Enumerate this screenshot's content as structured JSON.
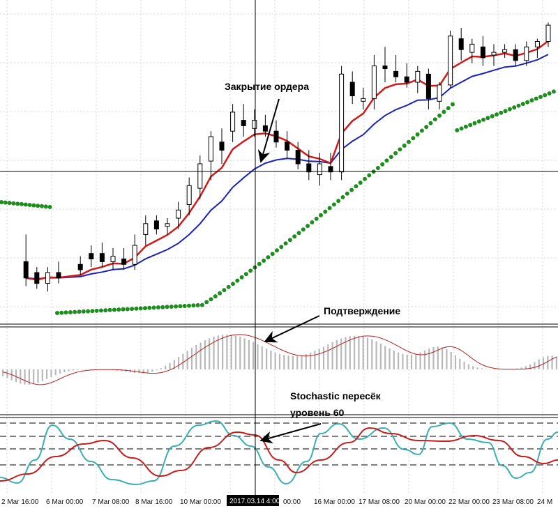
{
  "chart_data": [
    {
      "type": "candlestick",
      "panel": "price",
      "series": [
        {
          "name": "",
          "kind": "ema_fast",
          "color": "#d11a1a"
        },
        {
          "name": "",
          "kind": "ema_slow",
          "color": "#1a22b8"
        },
        {
          "name": "",
          "kind": "parabolic_sar",
          "color": "#1e8c1e"
        }
      ],
      "ohlc": [
        [
          2,
          0.14,
          0.24,
          0.05,
          0.08
        ],
        [
          3,
          0.1,
          0.12,
          0.04,
          0.06
        ],
        [
          4,
          0.06,
          0.12,
          0.03,
          0.1
        ],
        [
          5,
          0.1,
          0.14,
          0.06,
          0.08
        ],
        [
          7,
          0.13,
          0.16,
          0.09,
          0.11
        ],
        [
          8,
          0.17,
          0.2,
          0.12,
          0.15
        ],
        [
          9,
          0.17,
          0.21,
          0.12,
          0.14
        ],
        [
          10,
          0.14,
          0.19,
          0.11,
          0.16
        ],
        [
          11,
          0.15,
          0.19,
          0.11,
          0.13
        ],
        [
          12,
          0.13,
          0.24,
          0.11,
          0.2
        ],
        [
          13,
          0.24,
          0.31,
          0.2,
          0.28
        ],
        [
          14,
          0.29,
          0.31,
          0.24,
          0.26
        ],
        [
          15,
          0.27,
          0.3,
          0.24,
          0.28
        ],
        [
          16,
          0.3,
          0.36,
          0.26,
          0.33
        ],
        [
          17,
          0.35,
          0.45,
          0.31,
          0.42
        ],
        [
          18,
          0.41,
          0.53,
          0.37,
          0.5
        ],
        [
          19,
          0.51,
          0.62,
          0.44,
          0.6
        ],
        [
          20,
          0.58,
          0.63,
          0.5,
          0.55
        ],
        [
          21,
          0.62,
          0.72,
          0.58,
          0.69
        ],
        [
          22,
          0.66,
          0.72,
          0.6,
          0.64
        ],
        [
          23,
          0.63,
          0.7,
          0.6,
          0.66
        ],
        [
          24,
          0.64,
          0.68,
          0.6,
          0.62
        ],
        [
          25,
          0.62,
          0.66,
          0.56,
          0.58
        ],
        [
          26,
          0.58,
          0.62,
          0.52,
          0.55
        ],
        [
          27,
          0.55,
          0.58,
          0.48,
          0.5
        ],
        [
          28,
          0.5,
          0.55,
          0.44,
          0.47
        ],
        [
          29,
          0.46,
          0.54,
          0.42,
          0.5
        ],
        [
          30,
          0.49,
          0.54,
          0.44,
          0.47
        ],
        [
          31,
          0.47,
          0.86,
          0.44,
          0.83
        ],
        [
          32,
          0.8,
          0.84,
          0.72,
          0.75
        ],
        [
          33,
          0.73,
          0.78,
          0.7,
          0.74
        ],
        [
          34,
          0.74,
          0.9,
          0.7,
          0.86
        ],
        [
          35,
          0.86,
          0.93,
          0.8,
          0.85
        ],
        [
          36,
          0.84,
          0.9,
          0.8,
          0.82
        ],
        [
          37,
          0.82,
          0.87,
          0.78,
          0.8
        ],
        [
          38,
          0.8,
          0.86,
          0.76,
          0.84
        ],
        [
          39,
          0.83,
          0.85,
          0.7,
          0.74
        ],
        [
          40,
          0.73,
          0.8,
          0.7,
          0.79
        ],
        [
          41,
          0.79,
          0.99,
          0.78,
          0.97
        ],
        [
          42,
          0.96,
          1.0,
          0.88,
          0.92
        ],
        [
          43,
          0.91,
          0.96,
          0.87,
          0.94
        ],
        [
          44,
          0.93,
          0.97,
          0.86,
          0.89
        ],
        [
          45,
          0.9,
          0.94,
          0.86,
          0.91
        ],
        [
          46,
          0.91,
          0.94,
          0.89,
          0.92
        ],
        [
          47,
          0.92,
          0.94,
          0.86,
          0.88
        ],
        [
          48,
          0.88,
          0.95,
          0.86,
          0.93
        ],
        [
          49,
          0.93,
          0.96,
          0.89,
          0.95
        ],
        [
          50,
          0.95,
          1.02,
          0.93,
          1.01
        ]
      ]
    },
    {
      "type": "histogram",
      "panel": "macd",
      "series": [
        {
          "name": "",
          "kind": "histogram",
          "color": "#b8b8b8"
        },
        {
          "name": "",
          "kind": "signal",
          "color": "#b52020"
        }
      ]
    },
    {
      "type": "line",
      "panel": "stochastic",
      "levels": [
        80,
        60,
        40,
        20
      ],
      "series": [
        {
          "name": "",
          "kind": "main",
          "color": "#3aaeb2"
        },
        {
          "name": "",
          "kind": "signal",
          "color": "#c41e1e"
        }
      ]
    }
  ],
  "x_labels": [
    "2 Mar 16:00",
    "6 Mar 00:00",
    "7 Mar 08:00",
    "8 Mar 16:00",
    "10 Mar 00:00",
    "2017.03.14 4:00",
    "00:00",
    "16 Mar 00:00",
    "17 Mar 08:00",
    "20 Mar 00:00",
    "22 Mar 00:00",
    "23 Mar 08:00",
    "24 M"
  ],
  "crosshair_label": "2017.03.14 4:00",
  "annotations": {
    "close_order": "Закрытие ордера",
    "confirmation": "Подтверждение",
    "stoch_line1": "Stochastic пересёк",
    "stoch_line2": "уровень 60"
  }
}
